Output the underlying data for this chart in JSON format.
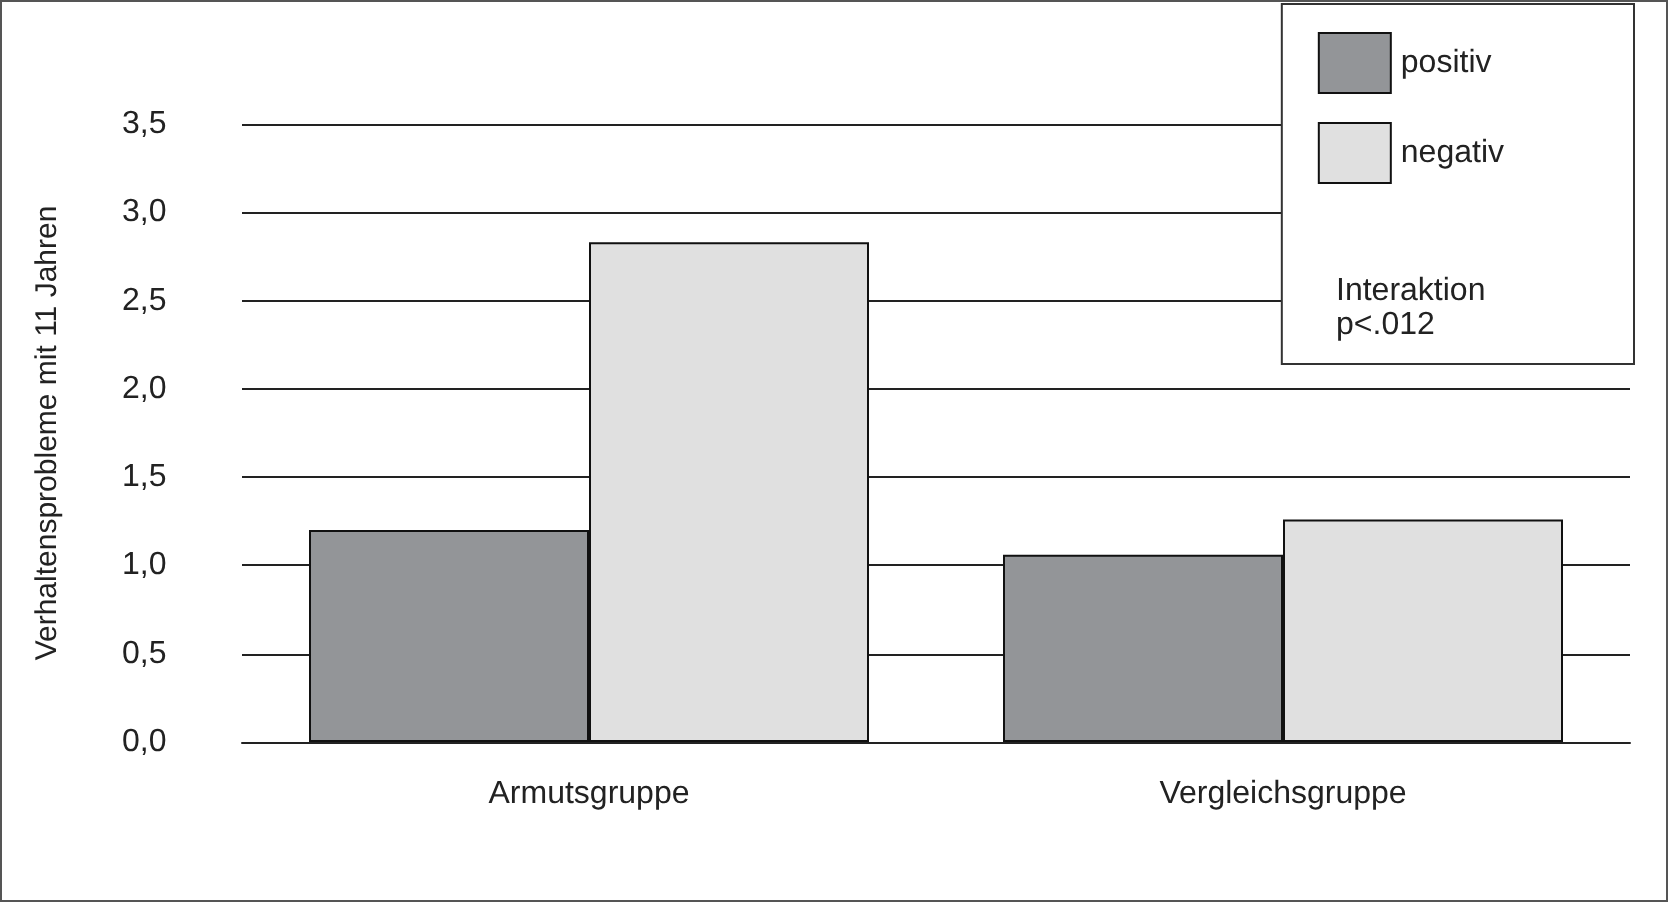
{
  "chart_data": {
    "type": "bar",
    "ylabel": "Verhaltensprobleme mit 11 Jahren",
    "categories": [
      "Armutsgruppe",
      "Vergleichsgruppe"
    ],
    "series": [
      {
        "name": "positiv",
        "color": "#939598",
        "values": [
          1.2,
          1.06
        ]
      },
      {
        "name": "negativ",
        "color": "#e0e0e0",
        "values": [
          2.83,
          1.26
        ]
      }
    ],
    "ylim": [
      0,
      3.5
    ],
    "yticks": [
      {
        "value": 0,
        "label": "0,0"
      },
      {
        "value": 0.5,
        "label": "0,5"
      },
      {
        "value": 1,
        "label": "1,0"
      },
      {
        "value": 1.5,
        "label": "1,5"
      },
      {
        "value": 2,
        "label": "2,0"
      },
      {
        "value": 2.5,
        "label": "2,5"
      },
      {
        "value": 3,
        "label": "3,0"
      },
      {
        "value": 3.5,
        "label": "3,5"
      }
    ],
    "grid": "y",
    "legend": "top right",
    "annotations": [
      "Interaktion\np<.012"
    ]
  }
}
